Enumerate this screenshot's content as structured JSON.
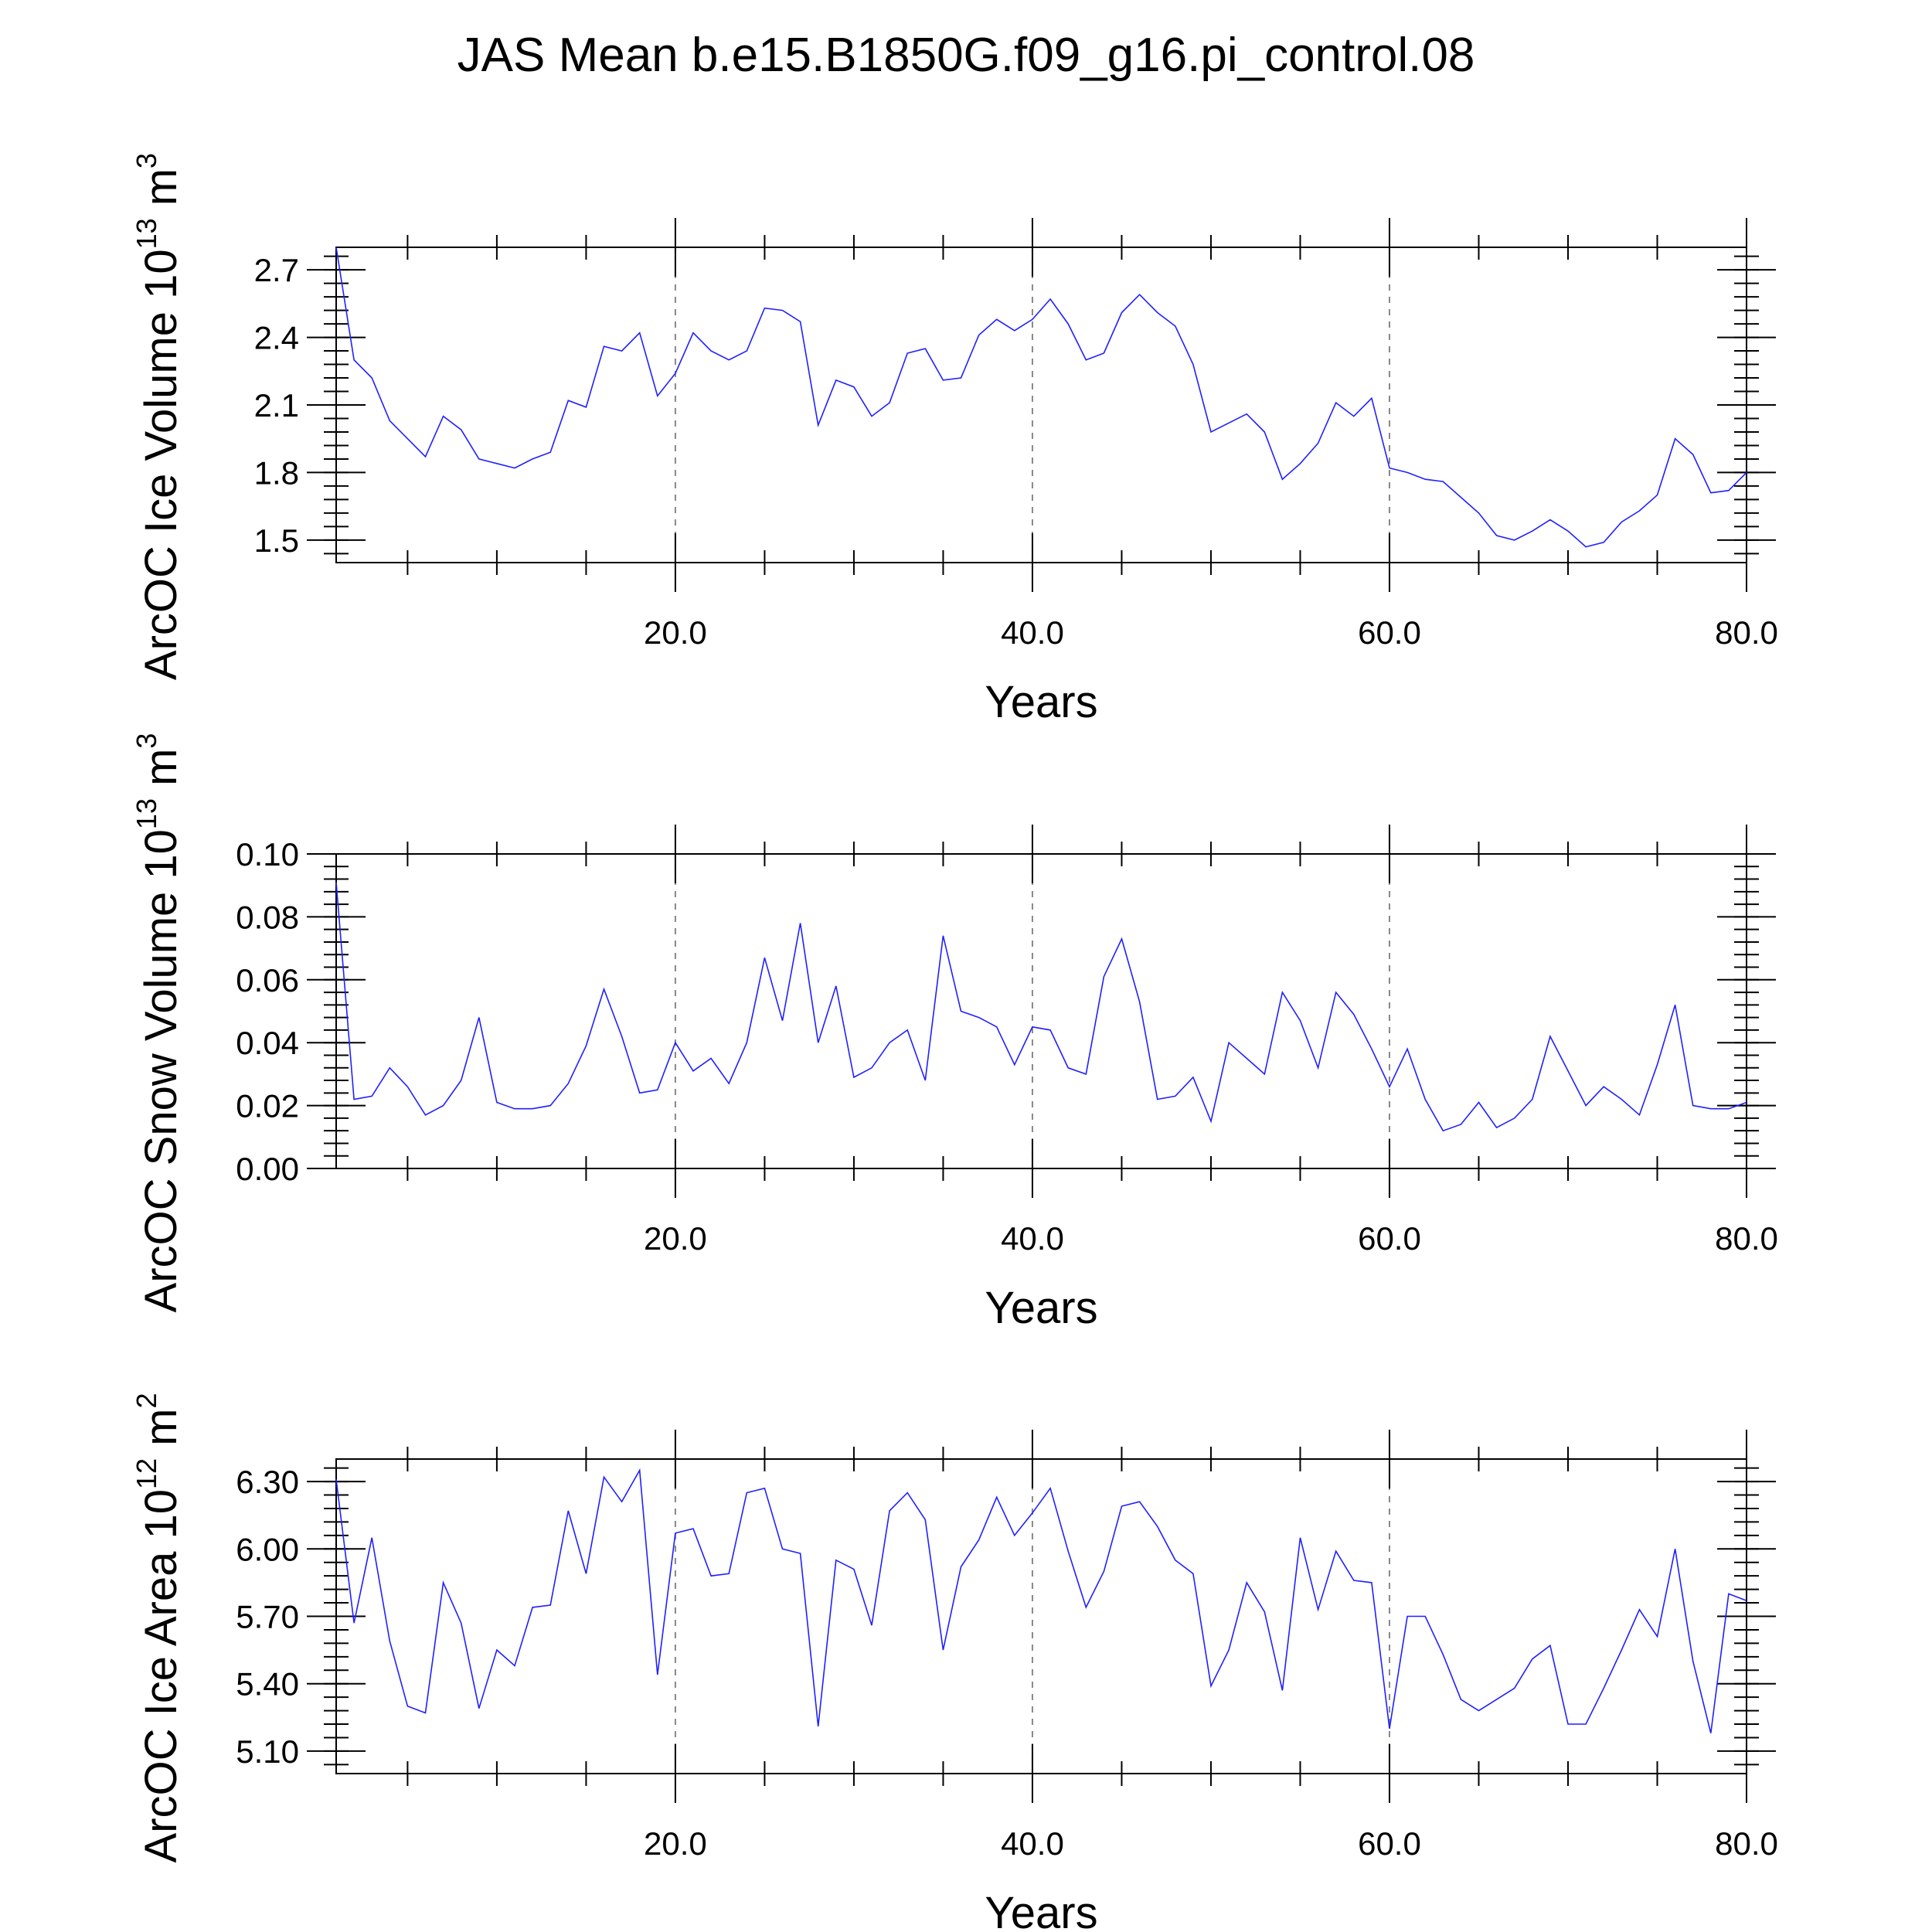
{
  "title": "JAS Mean b.e15.B1850G.f09_g16.pi_control.08",
  "chart_data": [
    {
      "type": "line",
      "ylabel": "ArcOC Ice Volume 10",
      "ylabel_exp": "13",
      "ylabel_unit": " m",
      "ylabel_unit_exp": "3",
      "xlabel": "Years",
      "xlim": [
        1,
        80
      ],
      "ylim": [
        1.4,
        2.8
      ],
      "xticks": [
        20,
        40,
        60,
        80
      ],
      "xtick_labels": [
        "20.0",
        "40.0",
        "60.0",
        "80.0"
      ],
      "yticks": [
        1.5,
        1.8,
        2.1,
        2.4,
        2.7
      ],
      "ytick_labels": [
        "1.5",
        "1.8",
        "2.1",
        "2.4",
        "2.7"
      ],
      "yminor_step": 0.06,
      "grid_x_dashed": [
        20,
        40,
        60
      ],
      "color": "#2020ff",
      "x_start": 1,
      "x_step": 1,
      "values": [
        2.8,
        2.3,
        2.22,
        2.03,
        1.95,
        1.87,
        2.05,
        1.99,
        1.86,
        1.84,
        1.82,
        1.86,
        1.89,
        2.12,
        2.09,
        2.36,
        2.34,
        2.42,
        2.14,
        2.24,
        2.42,
        2.34,
        2.3,
        2.34,
        2.53,
        2.52,
        2.47,
        2.01,
        2.21,
        2.18,
        2.05,
        2.11,
        2.33,
        2.35,
        2.21,
        2.22,
        2.41,
        2.48,
        2.43,
        2.48,
        2.57,
        2.46,
        2.3,
        2.33,
        2.51,
        2.59,
        2.51,
        2.45,
        2.28,
        1.98,
        2.02,
        2.06,
        1.98,
        1.77,
        1.84,
        1.93,
        2.11,
        2.05,
        2.13,
        1.82,
        1.8,
        1.77,
        1.76,
        1.69,
        1.62,
        1.52,
        1.5,
        1.54,
        1.59,
        1.54,
        1.47,
        1.49,
        1.58,
        1.63,
        1.7,
        1.95,
        1.88,
        1.71,
        1.72,
        1.8
      ]
    },
    {
      "type": "line",
      "ylabel": "ArcOC Snow Volume 10",
      "ylabel_exp": "13",
      "ylabel_unit": " m",
      "ylabel_unit_exp": "3",
      "xlabel": "Years",
      "xlim": [
        1,
        80
      ],
      "ylim": [
        0.0,
        0.1
      ],
      "xticks": [
        20,
        40,
        60,
        80
      ],
      "xtick_labels": [
        "20.0",
        "40.0",
        "60.0",
        "80.0"
      ],
      "yticks": [
        0.0,
        0.02,
        0.04,
        0.06,
        0.08,
        0.1
      ],
      "ytick_labels": [
        "0.00",
        "0.02",
        "0.04",
        "0.06",
        "0.08",
        "0.10"
      ],
      "yminor_step": 0.004,
      "grid_x_dashed": [
        20,
        40,
        60
      ],
      "color": "#2020ff",
      "x_start": 1,
      "x_step": 1,
      "values": [
        0.091,
        0.022,
        0.023,
        0.032,
        0.026,
        0.017,
        0.02,
        0.028,
        0.048,
        0.021,
        0.019,
        0.019,
        0.02,
        0.027,
        0.039,
        0.057,
        0.042,
        0.024,
        0.025,
        0.04,
        0.031,
        0.035,
        0.027,
        0.04,
        0.067,
        0.047,
        0.078,
        0.04,
        0.058,
        0.029,
        0.032,
        0.04,
        0.044,
        0.028,
        0.074,
        0.05,
        0.048,
        0.045,
        0.033,
        0.045,
        0.044,
        0.032,
        0.03,
        0.061,
        0.073,
        0.053,
        0.022,
        0.023,
        0.029,
        0.015,
        0.04,
        0.035,
        0.03,
        0.056,
        0.047,
        0.032,
        0.056,
        0.049,
        0.038,
        0.026,
        0.038,
        0.022,
        0.012,
        0.014,
        0.021,
        0.013,
        0.016,
        0.022,
        0.042,
        0.031,
        0.02,
        0.026,
        0.022,
        0.017,
        0.033,
        0.052,
        0.02,
        0.019,
        0.019,
        0.021
      ]
    },
    {
      "type": "line",
      "ylabel": "ArcOC Ice Area 10",
      "ylabel_exp": "12",
      "ylabel_unit": " m",
      "ylabel_unit_exp": "2",
      "xlabel": "Years",
      "xlim": [
        1,
        80
      ],
      "ylim": [
        5.0,
        6.4
      ],
      "xticks": [
        20,
        40,
        60,
        80
      ],
      "xtick_labels": [
        "20.0",
        "40.0",
        "60.0",
        "80.0"
      ],
      "yticks": [
        5.1,
        5.4,
        5.7,
        6.0,
        6.3
      ],
      "ytick_labels": [
        "5.10",
        "5.40",
        "5.70",
        "6.00",
        "6.30"
      ],
      "yminor_step": 0.06,
      "grid_x_dashed": [
        20,
        40,
        60
      ],
      "color": "#2020ff",
      "x_start": 1,
      "x_step": 1,
      "values": [
        6.31,
        5.67,
        6.05,
        5.59,
        5.3,
        5.27,
        5.85,
        5.67,
        5.29,
        5.55,
        5.48,
        5.74,
        5.75,
        6.17,
        5.89,
        6.32,
        6.21,
        6.35,
        5.44,
        6.07,
        6.09,
        5.88,
        5.89,
        6.25,
        6.27,
        6.0,
        5.98,
        5.21,
        5.95,
        5.91,
        5.66,
        6.17,
        6.25,
        6.13,
        5.55,
        5.92,
        6.04,
        6.23,
        6.06,
        6.16,
        6.27,
        5.99,
        5.74,
        5.9,
        6.19,
        6.21,
        6.1,
        5.95,
        5.89,
        5.39,
        5.55,
        5.85,
        5.72,
        5.37,
        6.05,
        5.73,
        5.99,
        5.86,
        5.85,
        5.2,
        5.7,
        5.7,
        5.53,
        5.33,
        5.28,
        5.33,
        5.38,
        5.51,
        5.57,
        5.22,
        5.22,
        5.38,
        5.55,
        5.73,
        5.61,
        6.0,
        5.5,
        5.18,
        5.8,
        5.77
      ]
    }
  ]
}
